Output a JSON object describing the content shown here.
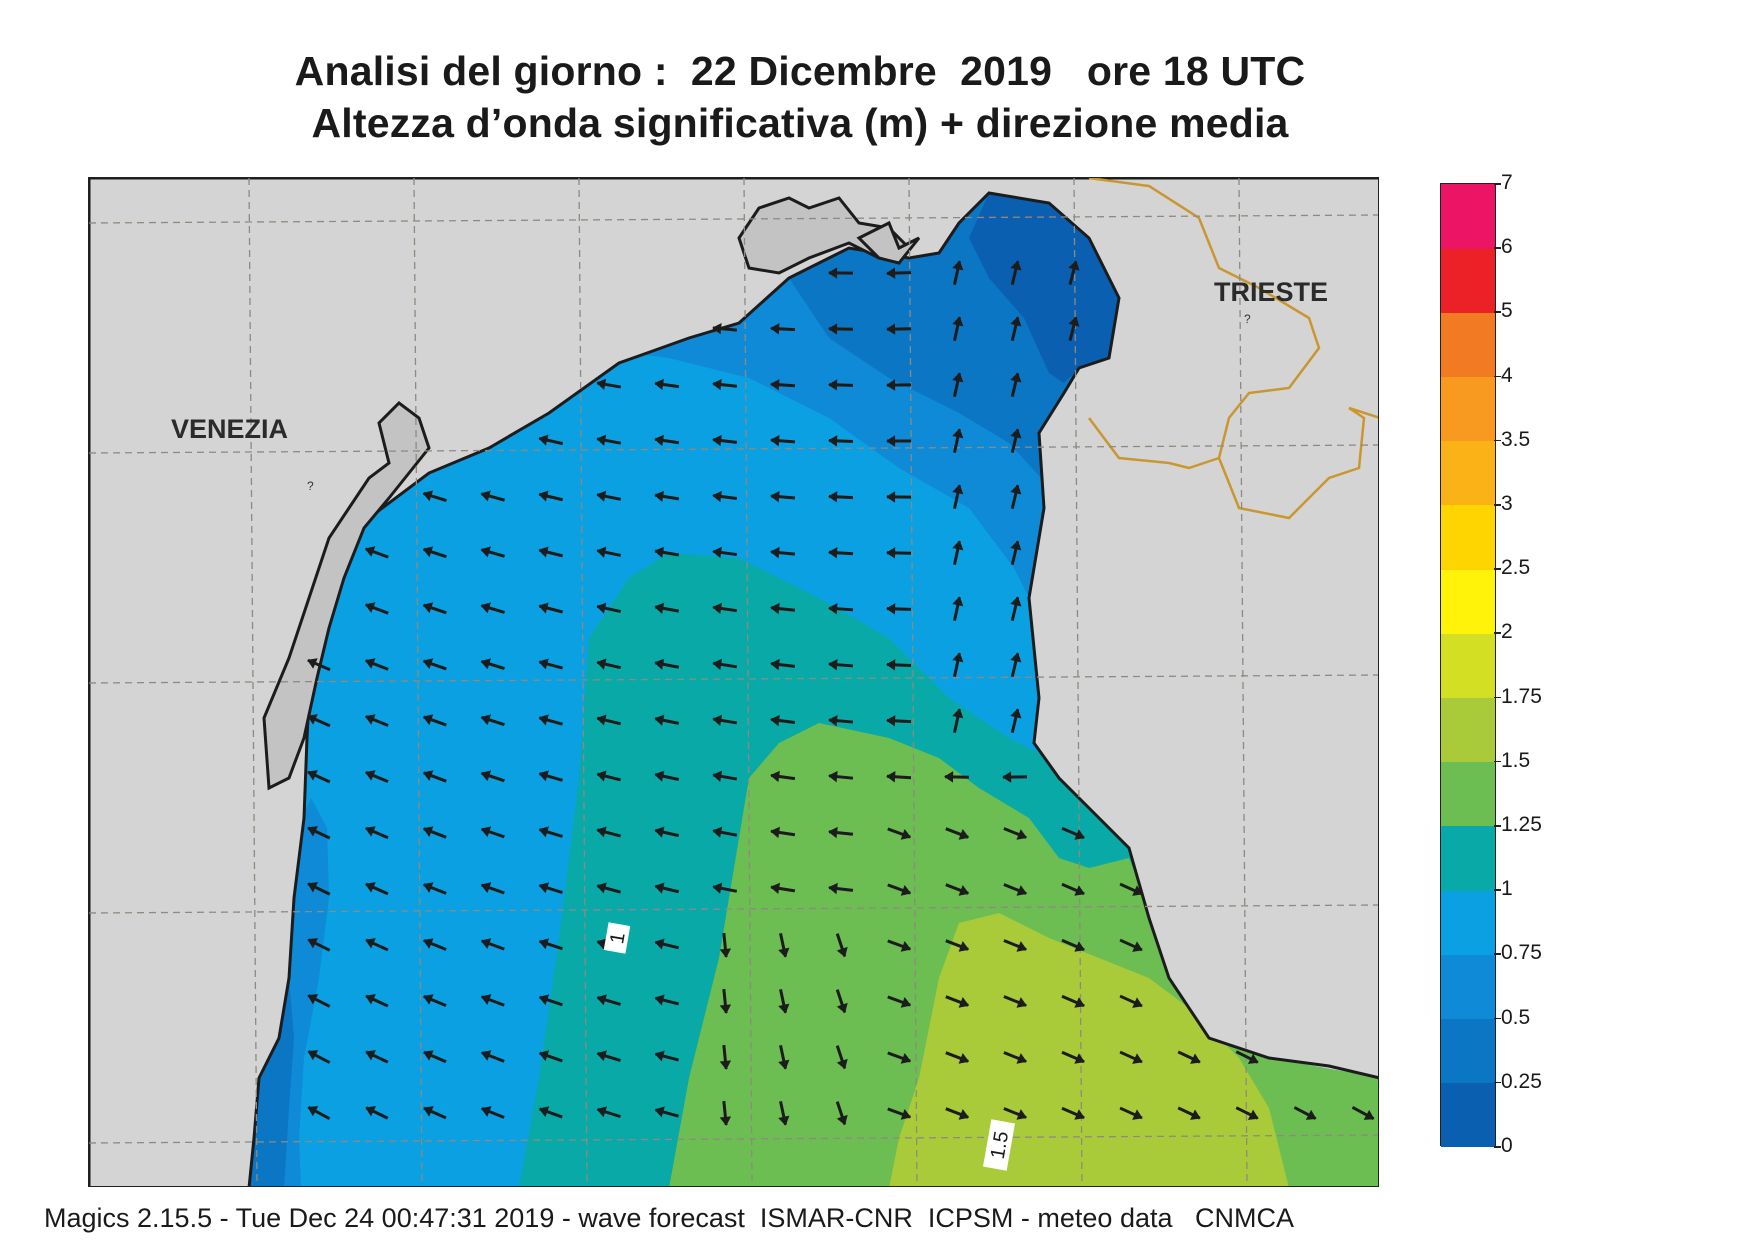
{
  "title": {
    "line1": "Analisi del giorno :  22 Dicembre  2019   ore 18 UTC",
    "line2": "Altezza d’onda significativa (m) + direzione media"
  },
  "map": {
    "cities": [
      {
        "name": "VENEZIA"
      },
      {
        "name": "TRIESTE"
      }
    ],
    "contour_labels": [
      "1",
      "1.5"
    ],
    "colors": {
      "land": "#d4d4d4",
      "border": "#c9962f",
      "coast": "#1c1c1c",
      "grid": "#8e8a80"
    }
  },
  "legend": {
    "bands": [
      {
        "from": "0",
        "to": "0.25",
        "color": "#0a5fb0"
      },
      {
        "from": "0.25",
        "to": "0.5",
        "color": "#0b76c3"
      },
      {
        "from": "0.5",
        "to": "0.75",
        "color": "#0f8ad6"
      },
      {
        "from": "0.75",
        "to": "1",
        "color": "#0aa0e2"
      },
      {
        "from": "1",
        "to": "1.25",
        "color": "#09a9a8"
      },
      {
        "from": "1.25",
        "to": "1.5",
        "color": "#6cbd52"
      },
      {
        "from": "1.5",
        "to": "1.75",
        "color": "#a9cb3a"
      },
      {
        "from": "1.75",
        "to": "2",
        "color": "#d2df22"
      },
      {
        "from": "2",
        "to": "2.5",
        "color": "#fff30a"
      },
      {
        "from": "2.5",
        "to": "3",
        "color": "#ffd500"
      },
      {
        "from": "3",
        "to": "3.5",
        "color": "#fbb217"
      },
      {
        "from": "3.5",
        "to": "4",
        "color": "#f89a1f"
      },
      {
        "from": "4",
        "to": "5",
        "color": "#f27a22"
      },
      {
        "from": "5",
        "to": "6",
        "color": "#ec2127"
      },
      {
        "from": "6",
        "to": "7",
        "color": "#ec1565"
      }
    ],
    "labels": [
      "0",
      "0.25",
      "0.5",
      "0.75",
      "1",
      "1.25",
      "1.5",
      "1.75",
      "2",
      "2.5",
      "3",
      "3.5",
      "4",
      "5",
      "6",
      "7"
    ]
  },
  "footer": {
    "text": "Magics 2.15.5 - Tue Dec 24 00:47:31 2019 - wave forecast  ISMAR-CNR  ICPSM - meteo data   CNMCA"
  }
}
